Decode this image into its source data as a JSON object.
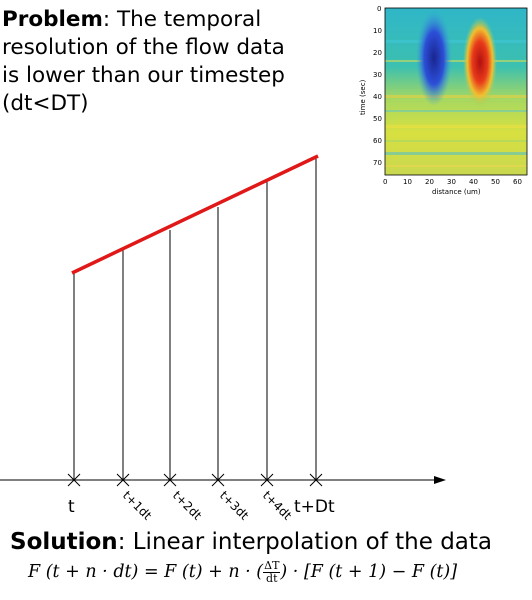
{
  "problem": {
    "bold": "Problem",
    "text": ": The temporal resolution of the flow data is lower than our timestep (dt<DT)"
  },
  "diagram": {
    "tick_labels": [
      "t",
      "t+1dt",
      "t+2dt",
      "t+3dt",
      "t+4dt",
      "t+Dt"
    ]
  },
  "heatmap": {
    "xlabel": "distance (um)",
    "ylabel": "time (sec)",
    "xticks": [
      "0",
      "10",
      "20",
      "30",
      "40",
      "50",
      "60"
    ],
    "yticks": [
      "0",
      "10",
      "20",
      "30",
      "40",
      "50",
      "60",
      "70"
    ],
    "colors": {
      "background": "#1fb8a8",
      "red": "#d9241c",
      "blue": "#1c2fb8",
      "yellow": "#e8e23a"
    }
  },
  "solution": {
    "bold": "Solution",
    "text": ": Linear interpolation of the data"
  },
  "formula": {
    "lhs": "F (t + n · dt) = F (t) + n · (",
    "num": "ΔT",
    "den": "dt",
    "rhs": ") · [F (t + 1) − F (t)]"
  },
  "colors": {
    "line": "#e01818"
  }
}
